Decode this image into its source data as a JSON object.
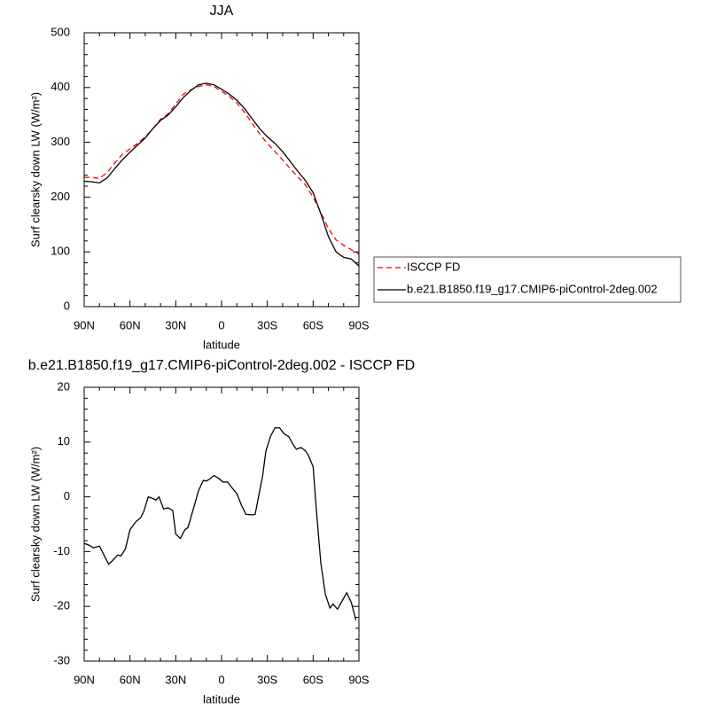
{
  "chart_data": [
    {
      "type": "line",
      "title": "JJA",
      "xlabel": "latitude",
      "ylabel": "Surf clearsky down LW (W/m²)",
      "x": [
        90,
        85,
        80,
        75,
        70,
        65,
        60,
        55,
        50,
        45,
        40,
        35,
        30,
        25,
        20,
        15,
        10,
        5,
        0,
        -5,
        -10,
        -15,
        -20,
        -25,
        -30,
        -35,
        -40,
        -45,
        -50,
        -55,
        -60,
        -65,
        -70,
        -75,
        -80,
        -85,
        -90
      ],
      "series": [
        {
          "name": "ISCCP FD",
          "color": "#ff0000",
          "line_style": "dashed",
          "values": [
            236,
            236,
            234,
            245,
            262,
            278,
            288,
            298,
            310,
            325,
            342,
            352,
            370,
            388,
            396,
            402,
            405,
            402,
            393,
            384,
            372,
            355,
            335,
            315,
            298,
            283,
            268,
            252,
            237,
            222,
            200,
            172,
            143,
            122,
            112,
            104,
            96
          ]
        },
        {
          "name": "b.e21.B1850.f19_g17.CMIP6-piControl-2deg.002",
          "color": "#000000",
          "line_style": "solid",
          "values": [
            229,
            228,
            226,
            235,
            252,
            268,
            282,
            295,
            308,
            325,
            340,
            350,
            365,
            382,
            395,
            405,
            408,
            405,
            397,
            388,
            377,
            362,
            343,
            325,
            310,
            298,
            283,
            265,
            247,
            230,
            208,
            170,
            128,
            100,
            90,
            87,
            74
          ]
        }
      ],
      "xlim": [
        90,
        -90
      ],
      "xticks": [
        {
          "value": 90,
          "label": "90N"
        },
        {
          "value": 60,
          "label": "60N"
        },
        {
          "value": 30,
          "label": "30N"
        },
        0,
        {
          "value": -30,
          "label": "30S"
        },
        {
          "value": -60,
          "label": "60S"
        },
        {
          "value": -90,
          "label": "90S"
        }
      ],
      "ylim": [
        0,
        500
      ],
      "yticks": [
        0,
        100,
        200,
        300,
        400,
        500
      ],
      "legend": "right"
    },
    {
      "type": "line",
      "title": "b.e21.B1850.f19_g17.CMIP6-piControl-2deg.002 - ISCCP FD",
      "xlabel": "latitude",
      "ylabel": "Surf clearsky down LW (W/m²)",
      "x": [
        90,
        87,
        84,
        80,
        74,
        72,
        68,
        66,
        63,
        60,
        56,
        53,
        51,
        48,
        45,
        43,
        41,
        38,
        35,
        32,
        30,
        27,
        24,
        22,
        19,
        15,
        12,
        10,
        8,
        5,
        2,
        -1,
        -4,
        -7,
        -10,
        -13,
        -16,
        -20,
        -22,
        -27,
        -29,
        -32,
        -35,
        -38,
        -41,
        -44,
        -47,
        -49,
        -52,
        -55,
        -57,
        -60,
        -62,
        -65,
        -68,
        -71,
        -73,
        -76,
        -82,
        -85,
        -88
      ],
      "series": [
        {
          "name": "b.e21.B1850.f19_g17.CMIP6-piControl-2deg.002 - ISCCP FD",
          "color": "#000000",
          "line_style": "solid",
          "values": [
            -8.5,
            -8.8,
            -9.3,
            -9,
            -12.3,
            -11.8,
            -10.6,
            -10.8,
            -9.5,
            -6,
            -4.5,
            -3.8,
            -2.7,
            0,
            -0.3,
            -0.6,
            0,
            -2.2,
            -2,
            -2.5,
            -6.8,
            -7.6,
            -6,
            -5.6,
            -2.7,
            1.2,
            3,
            2.9,
            3.2,
            3.9,
            3.4,
            2.7,
            2.7,
            1.6,
            0.6,
            -1.5,
            -3.2,
            -3.3,
            -3.2,
            4,
            8.3,
            11,
            12.6,
            12.6,
            11.5,
            11,
            9.5,
            8.7,
            9,
            8.4,
            7.5,
            5.5,
            -2,
            -12,
            -17.8,
            -20.3,
            -19.6,
            -20.5,
            -17.5,
            -19.3,
            -22.5
          ]
        }
      ],
      "xlim": [
        90,
        -90
      ],
      "xticks": [
        {
          "value": 90,
          "label": "90N"
        },
        {
          "value": 60,
          "label": "60N"
        },
        {
          "value": 30,
          "label": "30N"
        },
        0,
        {
          "value": -30,
          "label": "30S"
        },
        {
          "value": -60,
          "label": "60S"
        },
        {
          "value": -90,
          "label": "90S"
        }
      ],
      "ylim": [
        -30,
        20
      ],
      "yticks": [
        -30,
        -20,
        -10,
        0,
        10,
        20
      ]
    }
  ]
}
